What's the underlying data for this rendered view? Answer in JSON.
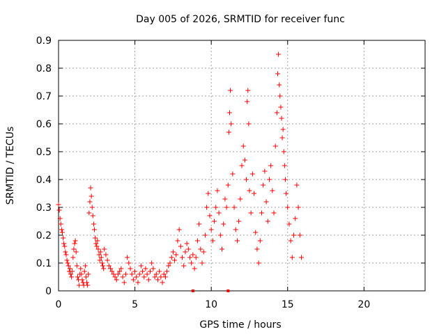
{
  "chart_data": {
    "type": "scatter",
    "title": "Day 005 of 2026, SRMTID for receiver func",
    "xlabel": "GPS time / hours",
    "ylabel": "SRMTID / TECUs",
    "xlim": [
      0,
      24
    ],
    "ylim": [
      0,
      0.9
    ],
    "xticks": [
      0,
      5,
      10,
      15,
      20
    ],
    "yticks": [
      0,
      0.1,
      0.2,
      0.3,
      0.4,
      0.5,
      0.6,
      0.7,
      0.8,
      0.9
    ],
    "ytick_labels": [
      "0",
      "0.1",
      "0.2",
      "0.3",
      "0.4",
      "0.5",
      "0.6",
      "0.7",
      "0.8",
      "0.9"
    ],
    "grid": true,
    "marker": "+",
    "color": "#ff0000",
    "series": [
      {
        "name": "SRMTID",
        "points": [
          [
            0.0,
            0.31
          ],
          [
            0.05,
            0.29
          ],
          [
            0.1,
            0.26
          ],
          [
            0.15,
            0.24
          ],
          [
            0.2,
            0.22
          ],
          [
            0.25,
            0.21
          ],
          [
            0.3,
            0.19
          ],
          [
            0.35,
            0.17
          ],
          [
            0.4,
            0.16
          ],
          [
            0.45,
            0.14
          ],
          [
            0.5,
            0.13
          ],
          [
            0.55,
            0.11
          ],
          [
            0.6,
            0.1
          ],
          [
            0.65,
            0.09
          ],
          [
            0.7,
            0.07
          ],
          [
            0.75,
            0.08
          ],
          [
            0.8,
            0.06
          ],
          [
            0.85,
            0.05
          ],
          [
            0.9,
            0.07
          ],
          [
            0.95,
            0.12
          ],
          [
            1.0,
            0.15
          ],
          [
            1.05,
            0.17
          ],
          [
            1.1,
            0.18
          ],
          [
            1.15,
            0.14
          ],
          [
            1.2,
            0.09
          ],
          [
            1.25,
            0.05
          ],
          [
            1.3,
            0.04
          ],
          [
            1.35,
            0.02
          ],
          [
            1.4,
            0.06
          ],
          [
            1.45,
            0.08
          ],
          [
            1.5,
            0.06
          ],
          [
            1.55,
            0.04
          ],
          [
            1.6,
            0.03
          ],
          [
            1.65,
            0.02
          ],
          [
            1.7,
            0.07
          ],
          [
            1.75,
            0.09
          ],
          [
            1.8,
            0.05
          ],
          [
            1.85,
            0.03
          ],
          [
            1.9,
            0.02
          ],
          [
            1.95,
            0.06
          ],
          [
            2.0,
            0.28
          ],
          [
            2.05,
            0.32
          ],
          [
            2.1,
            0.37
          ],
          [
            2.15,
            0.34
          ],
          [
            2.2,
            0.3
          ],
          [
            2.25,
            0.27
          ],
          [
            2.3,
            0.24
          ],
          [
            2.35,
            0.22
          ],
          [
            2.4,
            0.19
          ],
          [
            2.45,
            0.17
          ],
          [
            2.5,
            0.16
          ],
          [
            2.55,
            0.18
          ],
          [
            2.6,
            0.15
          ],
          [
            2.65,
            0.13
          ],
          [
            2.7,
            0.11
          ],
          [
            2.75,
            0.14
          ],
          [
            2.8,
            0.12
          ],
          [
            2.85,
            0.1
          ],
          [
            2.9,
            0.09
          ],
          [
            2.95,
            0.08
          ],
          [
            3.0,
            0.15
          ],
          [
            3.1,
            0.13
          ],
          [
            3.2,
            0.11
          ],
          [
            3.3,
            0.09
          ],
          [
            3.4,
            0.08
          ],
          [
            3.5,
            0.07
          ],
          [
            3.6,
            0.06
          ],
          [
            3.7,
            0.05
          ],
          [
            3.8,
            0.04
          ],
          [
            3.9,
            0.06
          ],
          [
            4.0,
            0.07
          ],
          [
            4.1,
            0.08
          ],
          [
            4.2,
            0.05
          ],
          [
            4.3,
            0.03
          ],
          [
            4.4,
            0.06
          ],
          [
            4.5,
            0.12
          ],
          [
            4.6,
            0.1
          ],
          [
            4.7,
            0.08
          ],
          [
            4.8,
            0.06
          ],
          [
            4.9,
            0.04
          ],
          [
            5.0,
            0.07
          ],
          [
            5.1,
            0.05
          ],
          [
            5.2,
            0.03
          ],
          [
            5.3,
            0.06
          ],
          [
            5.4,
            0.09
          ],
          [
            5.5,
            0.07
          ],
          [
            5.6,
            0.05
          ],
          [
            5.7,
            0.08
          ],
          [
            5.8,
            0.06
          ],
          [
            5.9,
            0.04
          ],
          [
            6.0,
            0.07
          ],
          [
            6.1,
            0.1
          ],
          [
            6.2,
            0.08
          ],
          [
            6.3,
            0.05
          ],
          [
            6.4,
            0.06
          ],
          [
            6.5,
            0.04
          ],
          [
            6.6,
            0.07
          ],
          [
            6.7,
            0.05
          ],
          [
            6.8,
            0.03
          ],
          [
            6.9,
            0.06
          ],
          [
            7.0,
            0.05
          ],
          [
            7.1,
            0.07
          ],
          [
            7.2,
            0.09
          ],
          [
            7.3,
            0.1
          ],
          [
            7.4,
            0.12
          ],
          [
            7.5,
            0.14
          ],
          [
            7.6,
            0.11
          ],
          [
            7.7,
            0.13
          ],
          [
            7.8,
            0.18
          ],
          [
            7.9,
            0.22
          ],
          [
            8.0,
            0.16
          ],
          [
            8.1,
            0.12
          ],
          [
            8.2,
            0.09
          ],
          [
            8.3,
            0.14
          ],
          [
            8.4,
            0.17
          ],
          [
            8.5,
            0.15
          ],
          [
            8.6,
            0.12
          ],
          [
            8.7,
            0.1
          ],
          [
            8.8,
            0.13
          ],
          [
            8.9,
            0.08
          ],
          [
            9.0,
            0.12
          ],
          [
            9.1,
            0.18
          ],
          [
            9.2,
            0.24
          ],
          [
            9.3,
            0.15
          ],
          [
            9.4,
            0.1
          ],
          [
            9.5,
            0.14
          ],
          [
            9.6,
            0.2
          ],
          [
            9.7,
            0.3
          ],
          [
            9.8,
            0.35
          ],
          [
            9.9,
            0.27
          ],
          [
            10.0,
            0.22
          ],
          [
            10.1,
            0.18
          ],
          [
            10.2,
            0.25
          ],
          [
            10.3,
            0.3
          ],
          [
            10.4,
            0.36
          ],
          [
            10.5,
            0.28
          ],
          [
            10.6,
            0.2
          ],
          [
            10.7,
            0.15
          ],
          [
            10.8,
            0.24
          ],
          [
            10.9,
            0.33
          ],
          [
            11.0,
            0.3
          ],
          [
            11.1,
            0.38
          ],
          [
            11.15,
            0.57
          ],
          [
            11.2,
            0.64
          ],
          [
            11.25,
            0.72
          ],
          [
            11.3,
            0.6
          ],
          [
            11.4,
            0.42
          ],
          [
            11.5,
            0.3
          ],
          [
            11.6,
            0.22
          ],
          [
            11.7,
            0.18
          ],
          [
            11.8,
            0.25
          ],
          [
            11.9,
            0.33
          ],
          [
            12.0,
            0.45
          ],
          [
            12.1,
            0.52
          ],
          [
            12.2,
            0.47
          ],
          [
            12.3,
            0.4
          ],
          [
            12.35,
            0.68
          ],
          [
            12.4,
            0.72
          ],
          [
            12.45,
            0.6
          ],
          [
            12.5,
            0.36
          ],
          [
            12.6,
            0.28
          ],
          [
            12.7,
            0.42
          ],
          [
            12.8,
            0.35
          ],
          [
            12.9,
            0.21
          ],
          [
            13.0,
            0.15
          ],
          [
            13.1,
            0.1
          ],
          [
            13.2,
            0.18
          ],
          [
            13.3,
            0.28
          ],
          [
            13.4,
            0.38
          ],
          [
            13.5,
            0.43
          ],
          [
            13.6,
            0.32
          ],
          [
            13.7,
            0.25
          ],
          [
            13.8,
            0.4
          ],
          [
            13.9,
            0.45
          ],
          [
            14.0,
            0.36
          ],
          [
            14.1,
            0.28
          ],
          [
            14.2,
            0.52
          ],
          [
            14.3,
            0.64
          ],
          [
            14.35,
            0.78
          ],
          [
            14.4,
            0.85
          ],
          [
            14.45,
            0.74
          ],
          [
            14.5,
            0.7
          ],
          [
            14.55,
            0.66
          ],
          [
            14.6,
            0.62
          ],
          [
            14.65,
            0.55
          ],
          [
            14.7,
            0.58
          ],
          [
            14.75,
            0.5
          ],
          [
            14.8,
            0.45
          ],
          [
            14.85,
            0.4
          ],
          [
            14.9,
            0.35
          ],
          [
            15.0,
            0.3
          ],
          [
            15.1,
            0.24
          ],
          [
            15.2,
            0.18
          ],
          [
            15.3,
            0.12
          ],
          [
            15.4,
            0.2
          ],
          [
            15.5,
            0.26
          ],
          [
            15.6,
            0.38
          ],
          [
            15.7,
            0.3
          ],
          [
            15.8,
            0.2
          ],
          [
            15.9,
            0.12
          ]
        ]
      }
    ],
    "markers_on_xaxis": [
      8.8,
      11.1
    ]
  }
}
